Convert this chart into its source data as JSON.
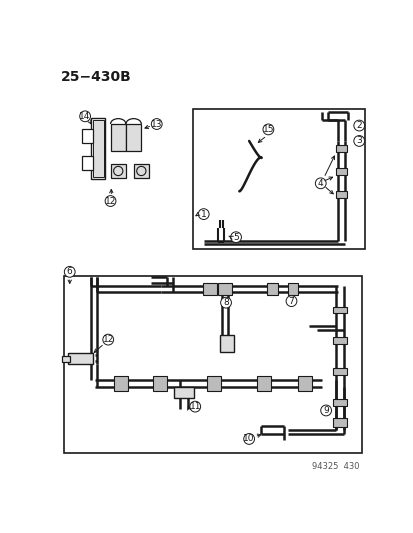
{
  "title": "25−430B",
  "footer": "94325  430",
  "bg_color": "#ffffff",
  "line_color": "#1a1a1a",
  "gray_fill": "#bbbbbb",
  "light_gray": "#dddddd",
  "title_fontsize": 10,
  "label_fontsize": 6.5,
  "footer_fontsize": 6,
  "figsize": [
    4.14,
    5.33
  ],
  "dpi": 100
}
